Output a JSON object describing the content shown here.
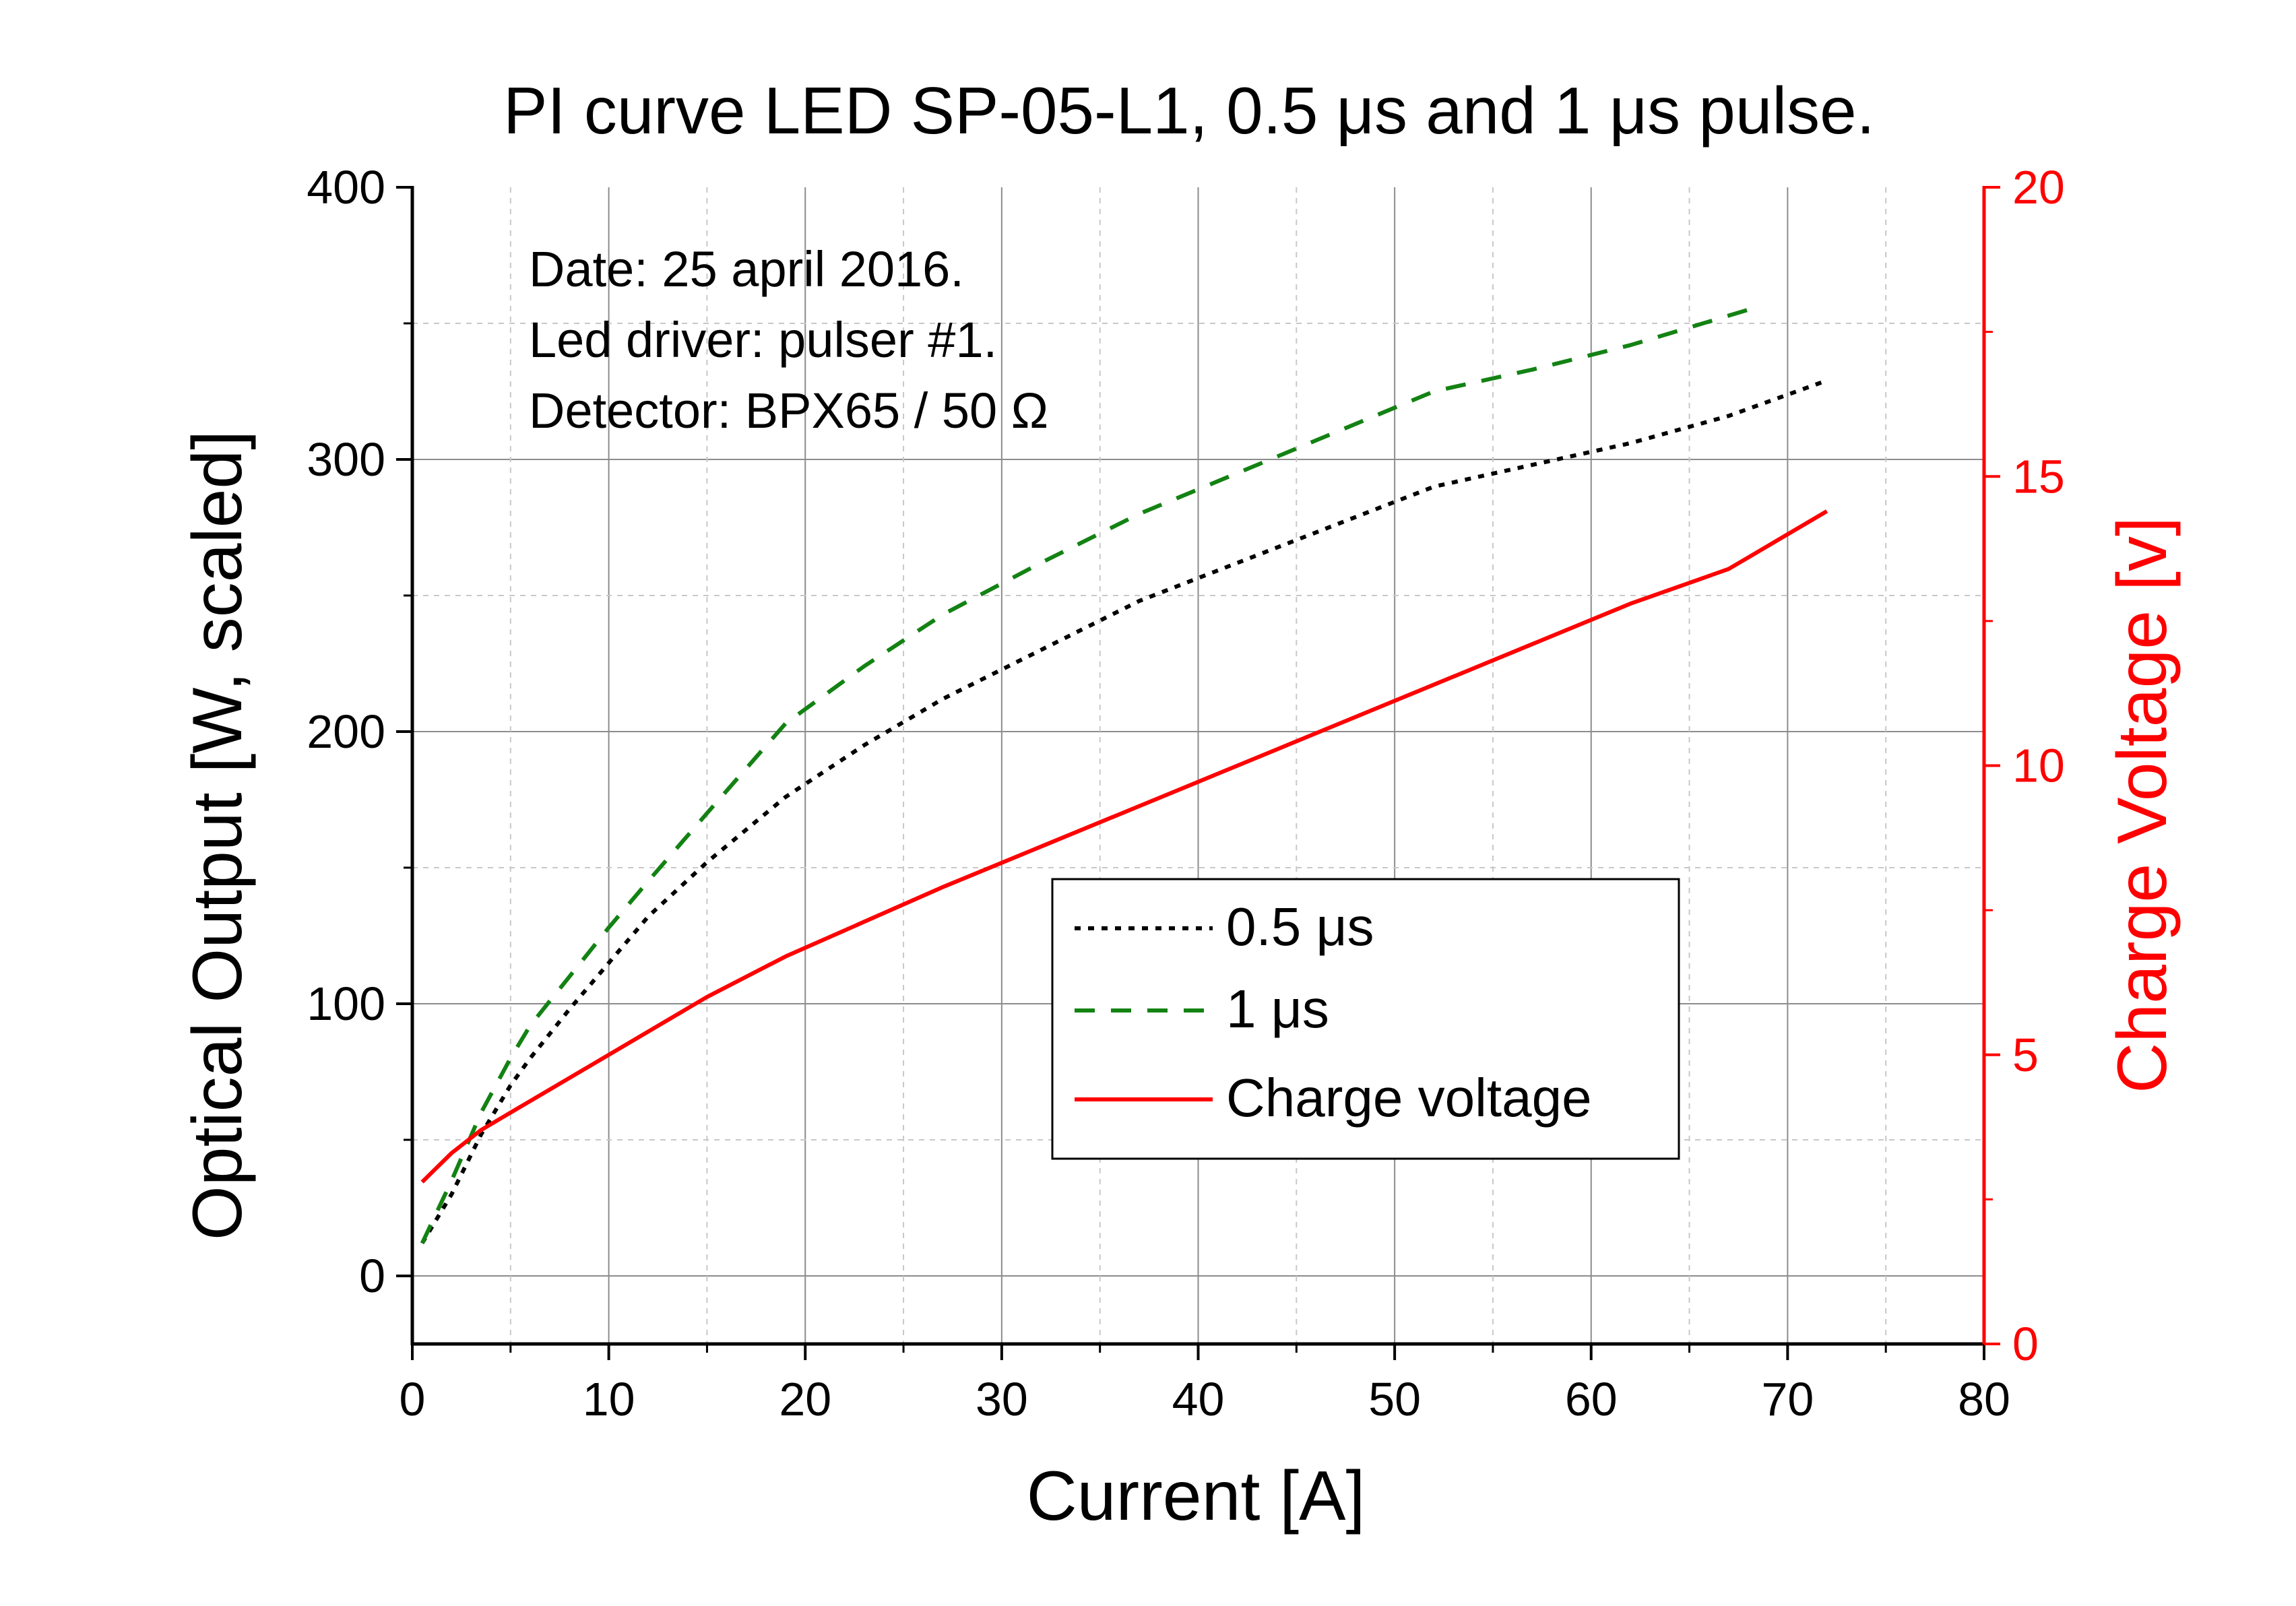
{
  "chart_data": {
    "type": "line",
    "title": "PI curve LED SP-05-L1, 0.5 μs and 1 μs pulse.",
    "xlabel": "Current [A]",
    "ylabel": "Optical Output [W, scaled]",
    "y2label": "Charge Voltage [v]",
    "xlim": [
      0,
      80
    ],
    "ylim": [
      -25,
      400
    ],
    "y2lim": [
      0,
      20
    ],
    "x_ticks": [
      "0",
      "10",
      "20",
      "30",
      "40",
      "50",
      "60",
      "70",
      "80"
    ],
    "y_ticks": [
      "0",
      "100",
      "200",
      "300",
      "400"
    ],
    "y2_ticks": [
      "0",
      "5",
      "10",
      "15",
      "20"
    ],
    "grid": true,
    "legend_position": "center-right",
    "annotations": [
      "Date: 25 april 2016.",
      "Led driver: pulser #1.",
      "Detector: BPX65 / 50 Ω"
    ],
    "series": [
      {
        "name": "0.5 μs",
        "axis": "left",
        "color": "#000000",
        "style": "dotted",
        "x": [
          0.5,
          2,
          3.5,
          5,
          6,
          8,
          10,
          12,
          15,
          19,
          23,
          27,
          32,
          37,
          42,
          47,
          52,
          57,
          62,
          67,
          72
        ],
        "y": [
          12,
          30,
          52,
          70,
          80,
          98,
          115,
          132,
          152,
          176,
          195,
          212,
          230,
          248,
          262,
          276,
          290,
          298,
          306,
          316,
          329
        ]
      },
      {
        "name": "1 μs",
        "axis": "left",
        "color": "#138213",
        "style": "dashed",
        "x": [
          0.5,
          2,
          3.5,
          5,
          6,
          8,
          10,
          12,
          15,
          19,
          23,
          27,
          32,
          37,
          42,
          47,
          52,
          57,
          62,
          68
        ],
        "y": [
          12,
          35,
          60,
          80,
          92,
          110,
          128,
          145,
          170,
          203,
          224,
          243,
          262,
          280,
          295,
          310,
          325,
          333,
          342,
          355
        ]
      },
      {
        "name": "Charge voltage",
        "axis": "right",
        "color": "#ff0000",
        "style": "solid",
        "x": [
          0.5,
          2,
          3.5,
          5,
          10,
          15,
          19,
          23,
          27,
          32,
          37,
          42,
          47,
          52,
          57,
          62,
          67,
          68,
          72
        ],
        "y": [
          2.8,
          3.3,
          3.7,
          4.0,
          5.0,
          6.0,
          6.7,
          7.3,
          7.9,
          8.6,
          9.3,
          10.0,
          10.7,
          11.4,
          12.1,
          12.8,
          13.4,
          13.6,
          14.4
        ]
      }
    ]
  }
}
